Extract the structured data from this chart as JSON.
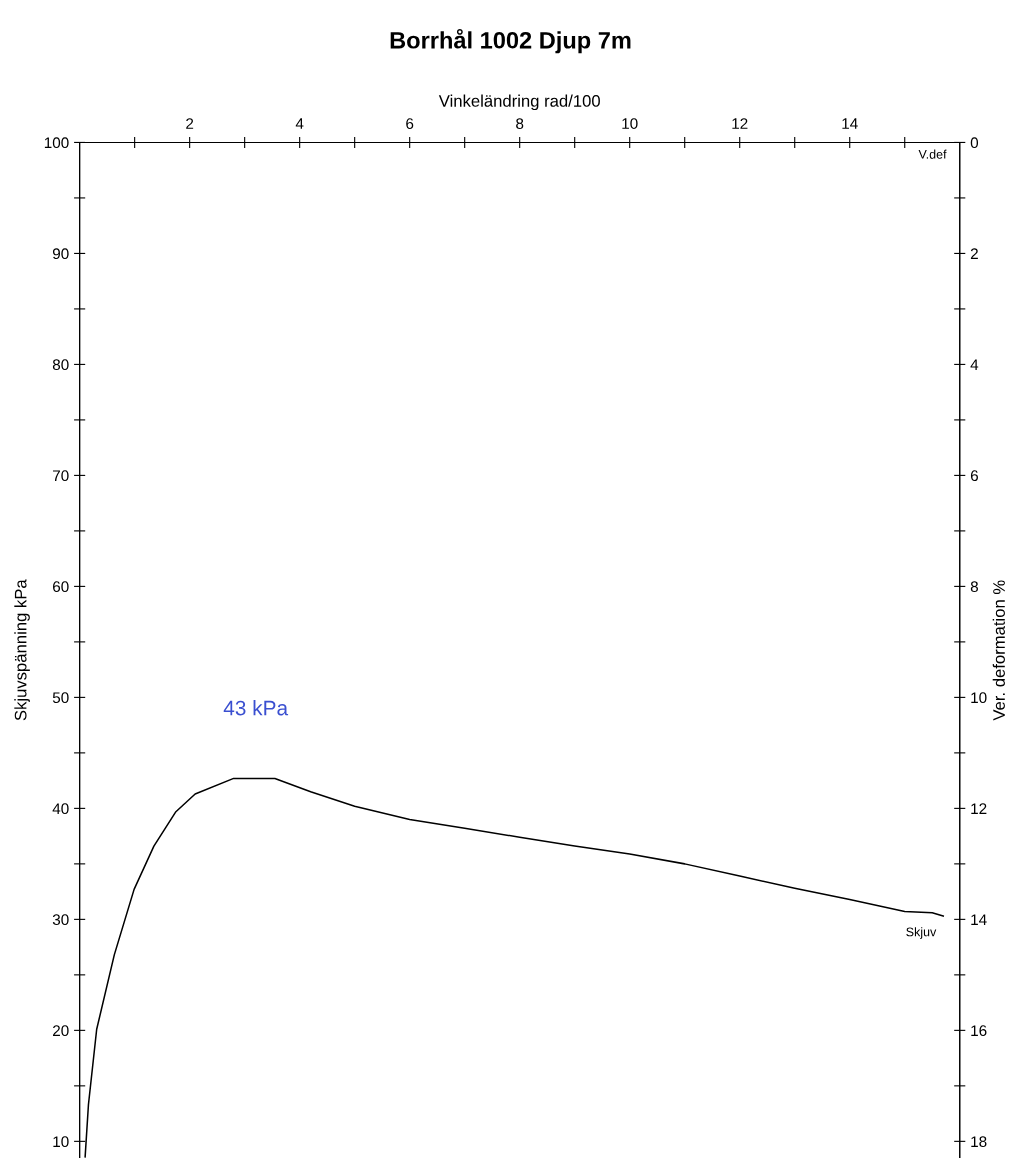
{
  "chart_data": {
    "type": "line",
    "title": "Borrhål 1002 Djup 7m",
    "xlabel": "Vinkeländring rad/100",
    "ylabel": "Skjuvspänning kPa",
    "y2label": "Ver. deformation %",
    "x": [
      0.1,
      0.16,
      0.31,
      0.63,
      0.99,
      1.35,
      1.75,
      2.1,
      2.8,
      3.55,
      4.2,
      5.0,
      6.0,
      7.0,
      8.0,
      9.0,
      10.0,
      11.0,
      12.0,
      13.0,
      14.0,
      15.0,
      15.5,
      15.7
    ],
    "series": [
      {
        "name": "Skjuv",
        "color": "#000000",
        "values": [
          8.6,
          13.3,
          20.1,
          26.8,
          32.7,
          36.6,
          39.7,
          41.3,
          42.7,
          42.7,
          41.5,
          40.2,
          39.0,
          38.2,
          37.4,
          36.6,
          35.9,
          35.0,
          33.9,
          32.8,
          31.8,
          30.7,
          30.6,
          30.3
        ]
      }
    ],
    "xlim": [
      0,
      16
    ],
    "xticks": [
      {
        "value": 1,
        "label": null
      },
      2,
      {
        "value": 3,
        "label": null
      },
      4,
      {
        "value": 5,
        "label": null
      },
      6,
      {
        "value": 7,
        "label": null
      },
      8,
      {
        "value": 9,
        "label": null
      },
      10,
      {
        "value": 11,
        "label": null
      },
      12,
      {
        "value": 13,
        "label": null
      },
      14,
      {
        "value": 15,
        "label": null
      }
    ],
    "ylim": [
      8.5,
      100
    ],
    "yticks": [
      10,
      {
        "value": 15,
        "label": null
      },
      20,
      {
        "value": 25,
        "label": null
      },
      30,
      {
        "value": 35,
        "label": null
      },
      40,
      {
        "value": 45,
        "label": null
      },
      50,
      {
        "value": 55,
        "label": null
      },
      60,
      {
        "value": 65,
        "label": null
      },
      70,
      {
        "value": 75,
        "label": null
      },
      80,
      {
        "value": 85,
        "label": null
      },
      90,
      {
        "value": 95,
        "label": null
      },
      100
    ],
    "y2lim": [
      18.3,
      0
    ],
    "y2ticks": [
      0,
      {
        "value": 1,
        "label": null
      },
      2,
      {
        "value": 3,
        "label": null
      },
      4,
      {
        "value": 5,
        "label": null
      },
      6,
      {
        "value": 7,
        "label": null
      },
      8,
      {
        "value": 9,
        "label": null
      },
      10,
      {
        "value": 11,
        "label": null
      },
      12,
      {
        "value": 13,
        "label": null
      },
      14,
      {
        "value": 15,
        "label": null
      },
      16,
      {
        "value": 17,
        "label": null
      },
      18
    ],
    "annotations": [
      {
        "text": "43 kPa",
        "x": 3.2,
        "y": 43
      },
      "V.def"
    ],
    "grid": false,
    "legend": false,
    "marker": "none",
    "line_style": "solid"
  }
}
